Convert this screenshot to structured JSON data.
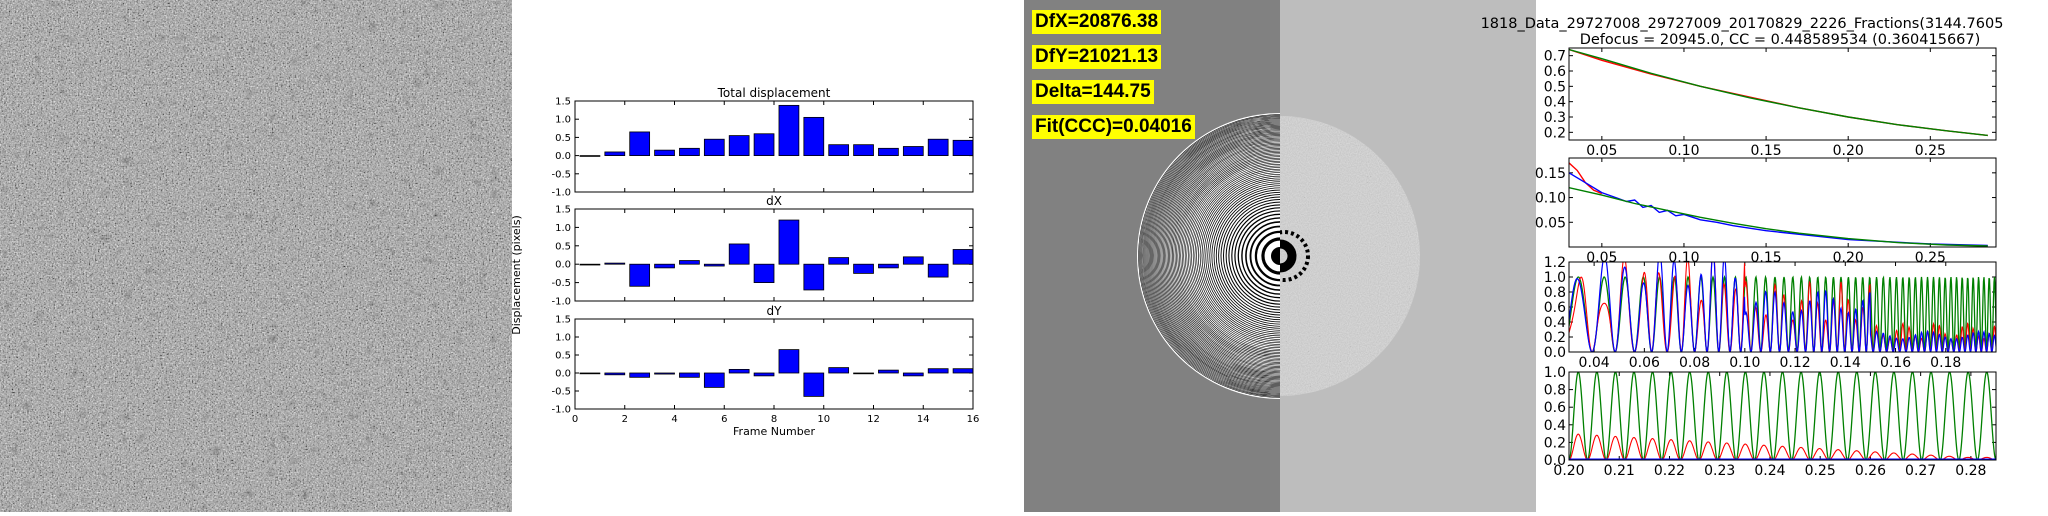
{
  "colors": {
    "bar": "#0000ff",
    "blue": "#0000ff",
    "red": "#ff0000",
    "green": "#008000",
    "ctf_label_bg": "#ffff00"
  },
  "ctf_labels": {
    "dfx": "DfX=20876.38",
    "dfy": "DfY=21021.13",
    "delta": "Delta=144.75",
    "fit": "Fit(CCC)=0.04016"
  },
  "fit_panel": {
    "title": "1818_Data_29727008_29727009_20170829_2226_Fractions(3144.7605",
    "subtitle": "Defocus = 20945.0, CC = 0.448589534 (0.360415667)"
  },
  "chart_data": [
    {
      "type": "bar",
      "title": "Total displacement",
      "ylabel": "Displacement (pixels)",
      "xlabel": "",
      "xlim": [
        0,
        16
      ],
      "ylim": [
        -1.0,
        1.5
      ],
      "yticks": [
        "-1.0",
        "-0.5",
        "0.0",
        "0.5",
        "1.0",
        "1.5"
      ],
      "xticks": [],
      "x": [
        1,
        2,
        3,
        4,
        5,
        6,
        7,
        8,
        9,
        10,
        11,
        12,
        13,
        14,
        15,
        16
      ],
      "values": [
        0.0,
        0.1,
        0.65,
        0.15,
        0.2,
        0.45,
        0.55,
        0.6,
        1.38,
        1.05,
        0.3,
        0.3,
        0.2,
        0.25,
        0.45,
        0.42
      ]
    },
    {
      "type": "bar",
      "title": "dX",
      "xlabel": "",
      "xlim": [
        0,
        16
      ],
      "ylim": [
        -1.0,
        1.5
      ],
      "yticks": [
        "-1.0",
        "-0.5",
        "0.0",
        "0.5",
        "1.0",
        "1.5"
      ],
      "xticks": [],
      "x": [
        1,
        2,
        3,
        4,
        5,
        6,
        7,
        8,
        9,
        10,
        11,
        12,
        13,
        14,
        15,
        16
      ],
      "values": [
        0.0,
        0.03,
        -0.6,
        -0.1,
        0.1,
        -0.05,
        0.55,
        -0.5,
        1.2,
        -0.7,
        0.18,
        -0.25,
        -0.1,
        0.2,
        -0.35,
        0.4
      ]
    },
    {
      "type": "bar",
      "title": "dY",
      "xlabel": "Frame Number",
      "xlim": [
        0,
        16
      ],
      "ylim": [
        -1.0,
        1.5
      ],
      "yticks": [
        "-1.0",
        "-0.5",
        "0.0",
        "0.5",
        "1.0",
        "1.5"
      ],
      "xticks": [
        "0",
        "2",
        "4",
        "6",
        "8",
        "10",
        "12",
        "14",
        "16"
      ],
      "x": [
        1,
        2,
        3,
        4,
        5,
        6,
        7,
        8,
        9,
        10,
        11,
        12,
        13,
        14,
        15,
        16
      ],
      "values": [
        0.0,
        -0.05,
        -0.12,
        -0.03,
        -0.12,
        -0.4,
        0.1,
        -0.08,
        0.65,
        -0.65,
        0.15,
        -0.02,
        0.08,
        -0.08,
        0.12,
        0.12
      ]
    },
    {
      "type": "line",
      "xlim": [
        0.03,
        0.29
      ],
      "ylim": [
        0.15,
        0.75
      ],
      "xticks": [
        "0.05",
        "0.10",
        "0.15",
        "0.20",
        "0.25"
      ],
      "yticks": [
        "0.2",
        "0.3",
        "0.4",
        "0.5",
        "0.6",
        "0.7"
      ],
      "series": [
        {
          "color": "red",
          "x": [
            0.03,
            0.05,
            0.08,
            0.11,
            0.14,
            0.17,
            0.2,
            0.23,
            0.26,
            0.285
          ],
          "y": [
            0.74,
            0.67,
            0.58,
            0.5,
            0.43,
            0.36,
            0.3,
            0.25,
            0.21,
            0.18
          ]
        },
        {
          "color": "green",
          "x": [
            0.03,
            0.05,
            0.08,
            0.11,
            0.14,
            0.17,
            0.2,
            0.23,
            0.26,
            0.285
          ],
          "y": [
            0.74,
            0.68,
            0.585,
            0.5,
            0.425,
            0.36,
            0.3,
            0.25,
            0.21,
            0.18
          ]
        }
      ]
    },
    {
      "type": "line",
      "xlim": [
        0.03,
        0.29
      ],
      "ylim": [
        0.0,
        0.18
      ],
      "xticks": [
        "0.05",
        "0.10",
        "0.15",
        "0.20",
        "0.25"
      ],
      "yticks": [
        "0.05",
        "0.10",
        "0.15"
      ],
      "series": [
        {
          "color": "red",
          "x": [
            0.03,
            0.035,
            0.04,
            0.045,
            0.05
          ],
          "y": [
            0.17,
            0.155,
            0.13,
            0.115,
            0.108
          ]
        },
        {
          "color": "blue",
          "x": [
            0.03,
            0.04,
            0.05,
            0.06,
            0.065,
            0.07,
            0.075,
            0.08,
            0.085,
            0.09,
            0.095,
            0.1,
            0.11,
            0.12,
            0.13,
            0.15,
            0.2,
            0.25,
            0.285
          ],
          "y": [
            0.15,
            0.13,
            0.11,
            0.098,
            0.092,
            0.095,
            0.08,
            0.084,
            0.07,
            0.074,
            0.063,
            0.066,
            0.055,
            0.05,
            0.043,
            0.033,
            0.015,
            0.006,
            0.003
          ]
        },
        {
          "color": "green",
          "x": [
            0.03,
            0.05,
            0.07,
            0.09,
            0.11,
            0.13,
            0.15,
            0.17,
            0.2,
            0.23,
            0.26,
            0.285
          ],
          "y": [
            0.12,
            0.105,
            0.088,
            0.074,
            0.06,
            0.048,
            0.037,
            0.028,
            0.017,
            0.009,
            0.004,
            0.002
          ]
        }
      ]
    },
    {
      "type": "line",
      "xlim": [
        0.03,
        0.2
      ],
      "ylim": [
        0.0,
        1.2
      ],
      "xticks": [
        "0.04",
        "0.06",
        "0.08",
        "0.10",
        "0.12",
        "0.14",
        "0.16",
        "0.18"
      ],
      "yticks": [
        "0.0",
        "0.2",
        "0.4",
        "0.6",
        "0.8",
        "1.0",
        "1.2"
      ]
    },
    {
      "type": "line",
      "xlim": [
        0.2,
        0.285
      ],
      "ylim": [
        0.0,
        1.0
      ],
      "xticks": [
        "0.20",
        "0.21",
        "0.22",
        "0.23",
        "0.24",
        "0.25",
        "0.26",
        "0.27",
        "0.28"
      ],
      "yticks": [
        "0.0",
        "0.2",
        "0.4",
        "0.6",
        "0.8",
        "1.0"
      ]
    }
  ]
}
